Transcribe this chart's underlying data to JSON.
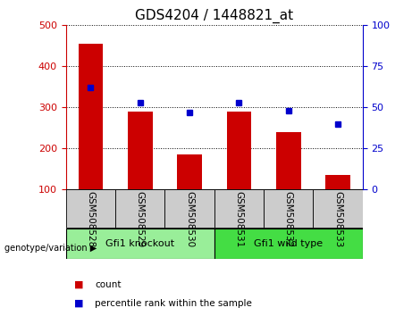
{
  "title": "GDS4204 / 1448821_at",
  "categories": [
    "GSM508528",
    "GSM508529",
    "GSM508530",
    "GSM508531",
    "GSM508532",
    "GSM508533"
  ],
  "counts": [
    455,
    290,
    185,
    290,
    240,
    135
  ],
  "percentiles": [
    62,
    53,
    47,
    53,
    48,
    40
  ],
  "ylim_left": [
    100,
    500
  ],
  "ylim_right": [
    0,
    100
  ],
  "yticks_left": [
    100,
    200,
    300,
    400,
    500
  ],
  "yticks_right": [
    0,
    25,
    50,
    75,
    100
  ],
  "bar_color": "#cc0000",
  "dot_color": "#0000cc",
  "bar_width": 0.5,
  "groups": [
    {
      "label": "Gfi1 knockout",
      "indices": [
        0,
        1,
        2
      ],
      "color": "#99ee99"
    },
    {
      "label": "Gfi1 wild type",
      "indices": [
        3,
        4,
        5
      ],
      "color": "#44dd44"
    }
  ],
  "group_label": "genotype/variation",
  "legend_count": "count",
  "legend_percentile": "percentile rank within the sample",
  "title_fontsize": 11,
  "tick_label_fontsize": 8,
  "left_tick_color": "#cc0000",
  "right_tick_color": "#0000cc",
  "bg_xticklabel": "#cccccc"
}
